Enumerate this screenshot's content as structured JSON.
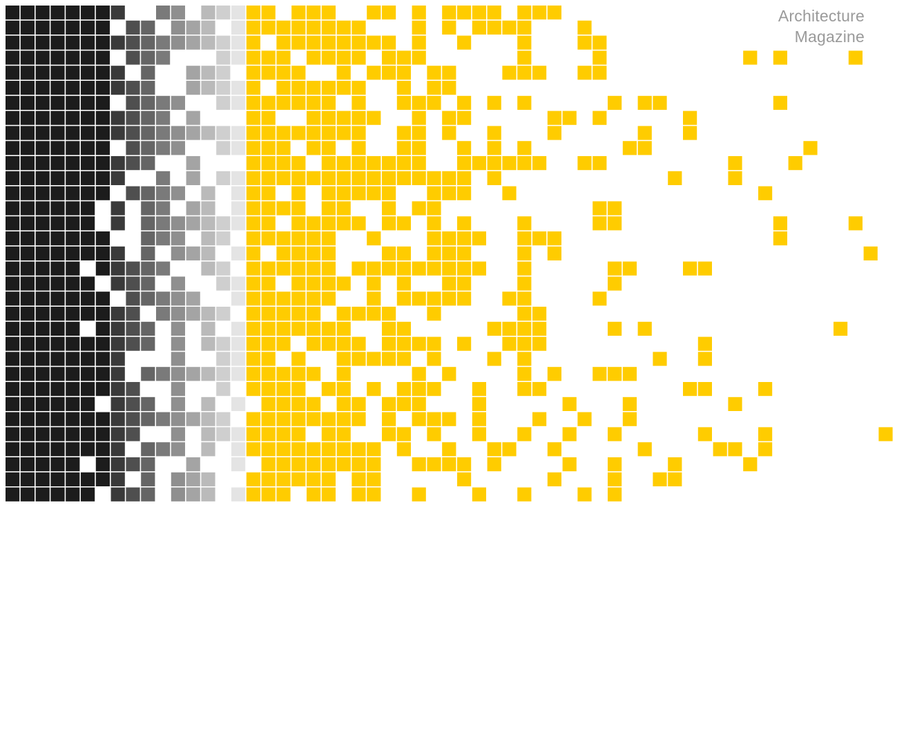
{
  "brand": {
    "line1": "Architecture",
    "line2": "Magazine"
  },
  "colors": {
    "dark": "#1c1c1c",
    "gray_start": "#3a3a3a",
    "gray_end": "#e4e4e4",
    "accent": "#ffcc00",
    "background": "#ffffff",
    "text": "#9a9a9a"
  },
  "mosaic": {
    "columns": 60,
    "rows": 33,
    "dark_columns": 7,
    "gray_columns": 9,
    "yellow_columns": 44,
    "dark_density": 0.9,
    "yellow_density_start": 0.85,
    "yellow_density_end": 0.05
  }
}
